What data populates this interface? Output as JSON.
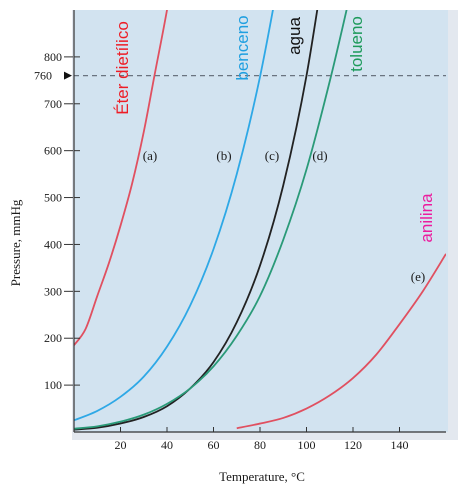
{
  "chart_data": {
    "type": "line",
    "xlabel": "Temperature, °C",
    "ylabel": "Pressure, mmHg",
    "xlim": [
      0,
      160
    ],
    "ylim": [
      0,
      900
    ],
    "x_ticks": [
      20,
      40,
      60,
      80,
      100,
      120,
      140
    ],
    "y_ticks": [
      100,
      200,
      300,
      400,
      500,
      600,
      700,
      800
    ],
    "y_tick_labels": [
      "100",
      "200",
      "300",
      "400",
      "500",
      "600",
      "700",
      "800"
    ],
    "reference_line": {
      "y": 760,
      "label": "760",
      "style": "dashed"
    },
    "background": "#d2e3f0",
    "series": [
      {
        "name": "Éter dietílico",
        "letter": "(a)",
        "color": "#e05060",
        "label_color": "#ee1c25",
        "x": [
          0,
          5,
          10,
          15,
          20,
          25,
          30,
          34.6,
          40,
          45
        ],
        "y": [
          185,
          220,
          290,
          360,
          440,
          530,
          640,
          760,
          900,
          1050
        ]
      },
      {
        "name": "benceno",
        "letter": "(b)",
        "color": "#2ea8e6",
        "label_color": "#1f9fe0",
        "x": [
          0,
          10,
          20,
          30,
          40,
          50,
          60,
          70,
          80.1,
          90
        ],
        "y": [
          25,
          45,
          75,
          118,
          182,
          270,
          390,
          550,
          760,
          1020
        ]
      },
      {
        "name": "agua",
        "letter": "(c)",
        "color": "#222222",
        "label_color": "#111111",
        "x": [
          0,
          10,
          20,
          30,
          40,
          50,
          60,
          70,
          80,
          90,
          100,
          110
        ],
        "y": [
          5,
          9,
          18,
          32,
          55,
          93,
          149,
          234,
          355,
          526,
          760,
          1075
        ]
      },
      {
        "name": "tolueno",
        "letter": "(d)",
        "color": "#2a9a78",
        "label_color": "#1c9a5a",
        "x": [
          0,
          10,
          20,
          30,
          40,
          50,
          60,
          70,
          80,
          90,
          100,
          110.6,
          120
        ],
        "y": [
          7,
          12,
          22,
          37,
          60,
          93,
          140,
          205,
          290,
          410,
          560,
          760,
          960
        ]
      },
      {
        "name": "anilina",
        "letter": "(e)",
        "color": "#e05060",
        "label_color": "#ec1c9e",
        "x": [
          70,
          80,
          90,
          100,
          110,
          120,
          130,
          140,
          150,
          160
        ],
        "y": [
          8,
          18,
          30,
          50,
          78,
          115,
          165,
          230,
          300,
          380
        ]
      }
    ]
  }
}
